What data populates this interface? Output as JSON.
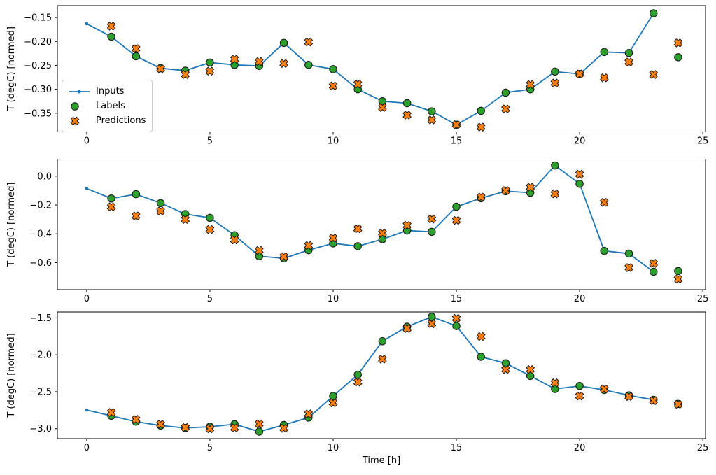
{
  "figure": {
    "background": "#ffffff",
    "xlabel": "Time [h]",
    "ylabel": "T (degC) [normed]",
    "colors": {
      "inputs": "#1f77b4",
      "labels": "#2ca02c",
      "predictions": "#ff7f0e",
      "marker_edge": "#1a1a1a",
      "spine": "#000000",
      "tick_text": "#000000"
    },
    "legend": {
      "position": "upper-left-of-first-subplot",
      "items": [
        {
          "label": "Inputs",
          "marker": "line-dot-icon",
          "color": "#1f77b4"
        },
        {
          "label": "Labels",
          "marker": "circle-icon",
          "color": "#2ca02c"
        },
        {
          "label": "Predictions",
          "marker": "x-cross-icon",
          "color": "#ff7f0e"
        }
      ]
    }
  },
  "chart_data": [
    {
      "type": "line",
      "subplot": 1,
      "ylabel": "T (degC) [normed]",
      "xlim": [
        -1.19,
        25.11
      ],
      "ylim": [
        -0.389,
        -0.125
      ],
      "xticks": [
        0,
        5,
        10,
        15,
        20,
        25
      ],
      "xtick_labels": [
        "0",
        "5",
        "10",
        "15",
        "20",
        "25"
      ],
      "yticks": [
        -0.15,
        -0.2,
        -0.25,
        -0.3,
        -0.35
      ],
      "ytick_labels": [
        "−0.15",
        "−0.20",
        "−0.25",
        "−0.30",
        "−0.35"
      ],
      "grid": false,
      "series": [
        {
          "name": "Inputs",
          "type": "line",
          "marker": "dot",
          "x": [
            0,
            1,
            2,
            3,
            4,
            5,
            6,
            7,
            8,
            9,
            10,
            11,
            12,
            13,
            14,
            15,
            16,
            17,
            18,
            19,
            20,
            21,
            22,
            23
          ],
          "y": [
            -0.163,
            -0.19,
            -0.231,
            -0.256,
            -0.261,
            -0.244,
            -0.249,
            -0.251,
            -0.203,
            -0.249,
            -0.258,
            -0.3,
            -0.325,
            -0.329,
            -0.346,
            -0.374,
            -0.345,
            -0.307,
            -0.3,
            -0.263,
            -0.268,
            -0.222,
            -0.224,
            -0.141
          ]
        },
        {
          "name": "Labels",
          "type": "scatter",
          "marker": "circle",
          "x": [
            1,
            2,
            3,
            4,
            5,
            6,
            7,
            8,
            9,
            10,
            11,
            12,
            13,
            14,
            15,
            16,
            17,
            18,
            19,
            20,
            21,
            22,
            23,
            24
          ],
          "y": [
            -0.19,
            -0.231,
            -0.256,
            -0.261,
            -0.244,
            -0.249,
            -0.251,
            -0.203,
            -0.249,
            -0.258,
            -0.3,
            -0.325,
            -0.329,
            -0.346,
            -0.374,
            -0.345,
            -0.307,
            -0.3,
            -0.263,
            -0.268,
            -0.222,
            -0.224,
            -0.141,
            -0.233
          ]
        },
        {
          "name": "Predictions",
          "type": "scatter",
          "marker": "X",
          "x": [
            1,
            2,
            3,
            4,
            5,
            6,
            7,
            8,
            9,
            10,
            11,
            12,
            13,
            14,
            15,
            16,
            17,
            18,
            19,
            20,
            21,
            22,
            23,
            24
          ],
          "y": [
            -0.168,
            -0.215,
            -0.257,
            -0.269,
            -0.262,
            -0.237,
            -0.242,
            -0.246,
            -0.201,
            -0.293,
            -0.289,
            -0.338,
            -0.354,
            -0.364,
            -0.374,
            -0.379,
            -0.341,
            -0.29,
            -0.287,
            -0.268,
            -0.276,
            -0.243,
            -0.269,
            -0.203
          ]
        }
      ]
    },
    {
      "type": "line",
      "subplot": 2,
      "ylabel": "T (degC) [normed]",
      "xlim": [
        -1.19,
        25.11
      ],
      "ylim": [
        -0.787,
        0.118
      ],
      "xticks": [
        0,
        5,
        10,
        15,
        20,
        25
      ],
      "xtick_labels": [
        "0",
        "5",
        "10",
        "15",
        "20",
        "25"
      ],
      "yticks": [
        0.0,
        -0.2,
        -0.4,
        -0.6
      ],
      "ytick_labels": [
        "0.0",
        "−0.2",
        "−0.4",
        "−0.6"
      ],
      "grid": false,
      "series": [
        {
          "name": "Inputs",
          "type": "line",
          "marker": "dot",
          "x": [
            0,
            1,
            2,
            3,
            4,
            5,
            6,
            7,
            8,
            9,
            10,
            11,
            12,
            13,
            14,
            15,
            16,
            17,
            18,
            19,
            20,
            21,
            22,
            23
          ],
          "y": [
            -0.086,
            -0.155,
            -0.125,
            -0.187,
            -0.263,
            -0.289,
            -0.41,
            -0.555,
            -0.57,
            -0.513,
            -0.466,
            -0.486,
            -0.437,
            -0.377,
            -0.386,
            -0.212,
            -0.153,
            -0.104,
            -0.115,
            0.074,
            -0.053,
            -0.518,
            -0.537,
            -0.663
          ]
        },
        {
          "name": "Labels",
          "type": "scatter",
          "marker": "circle",
          "x": [
            1,
            2,
            3,
            4,
            5,
            6,
            7,
            8,
            9,
            10,
            11,
            12,
            13,
            14,
            15,
            16,
            17,
            18,
            19,
            20,
            21,
            22,
            23,
            24
          ],
          "y": [
            -0.155,
            -0.125,
            -0.187,
            -0.263,
            -0.289,
            -0.41,
            -0.555,
            -0.57,
            -0.513,
            -0.466,
            -0.486,
            -0.437,
            -0.377,
            -0.386,
            -0.212,
            -0.153,
            -0.104,
            -0.115,
            0.074,
            -0.053,
            -0.518,
            -0.537,
            -0.663,
            -0.658
          ]
        },
        {
          "name": "Predictions",
          "type": "scatter",
          "marker": "X",
          "x": [
            1,
            2,
            3,
            4,
            5,
            6,
            7,
            8,
            9,
            10,
            11,
            12,
            13,
            14,
            15,
            16,
            17,
            18,
            19,
            20,
            21,
            22,
            23,
            24
          ],
          "y": [
            -0.213,
            -0.276,
            -0.242,
            -0.3,
            -0.37,
            -0.442,
            -0.515,
            -0.558,
            -0.481,
            -0.429,
            -0.365,
            -0.395,
            -0.341,
            -0.297,
            -0.307,
            -0.145,
            -0.1,
            -0.077,
            -0.123,
            0.013,
            -0.182,
            -0.634,
            -0.605,
            -0.714
          ]
        }
      ]
    },
    {
      "type": "line",
      "subplot": 3,
      "ylabel": "T (degC) [normed]",
      "xlabel": "Time [h]",
      "xlim": [
        -1.19,
        25.11
      ],
      "ylim": [
        -3.135,
        -1.421
      ],
      "xticks": [
        0,
        5,
        10,
        15,
        20,
        25
      ],
      "xtick_labels": [
        "0",
        "5",
        "10",
        "15",
        "20",
        "25"
      ],
      "yticks": [
        -1.5,
        -2.0,
        -2.5,
        -3.0
      ],
      "ytick_labels": [
        "−1.5",
        "−2.0",
        "−2.5",
        "−3.0"
      ],
      "grid": false,
      "series": [
        {
          "name": "Inputs",
          "type": "line",
          "marker": "dot",
          "x": [
            0,
            1,
            2,
            3,
            4,
            5,
            6,
            7,
            8,
            9,
            10,
            11,
            12,
            13,
            14,
            15,
            16,
            17,
            18,
            19,
            20,
            21,
            22,
            23
          ],
          "y": [
            -2.747,
            -2.826,
            -2.905,
            -2.958,
            -2.99,
            -2.974,
            -2.94,
            -3.04,
            -2.95,
            -2.85,
            -2.558,
            -2.27,
            -1.816,
            -1.62,
            -1.486,
            -1.611,
            -2.027,
            -2.115,
            -2.286,
            -2.463,
            -2.422,
            -2.476,
            -2.549,
            -2.61
          ]
        },
        {
          "name": "Labels",
          "type": "scatter",
          "marker": "circle",
          "x": [
            1,
            2,
            3,
            4,
            5,
            6,
            7,
            8,
            9,
            10,
            11,
            12,
            13,
            14,
            15,
            16,
            17,
            18,
            19,
            20,
            21,
            22,
            23,
            24
          ],
          "y": [
            -2.826,
            -2.905,
            -2.958,
            -2.99,
            -2.974,
            -2.94,
            -3.04,
            -2.95,
            -2.85,
            -2.558,
            -2.27,
            -1.816,
            -1.62,
            -1.486,
            -1.611,
            -2.027,
            -2.115,
            -2.286,
            -2.463,
            -2.422,
            -2.476,
            -2.549,
            -2.61,
            -2.665
          ]
        },
        {
          "name": "Predictions",
          "type": "scatter",
          "marker": "X",
          "x": [
            1,
            2,
            3,
            4,
            5,
            6,
            7,
            8,
            9,
            10,
            11,
            12,
            13,
            14,
            15,
            16,
            17,
            18,
            19,
            20,
            21,
            22,
            23,
            24
          ],
          "y": [
            -2.78,
            -2.875,
            -2.94,
            -2.985,
            -3.0,
            -2.99,
            -2.935,
            -2.995,
            -2.8,
            -2.65,
            -2.37,
            -2.059,
            -1.645,
            -1.58,
            -1.507,
            -1.753,
            -2.2,
            -2.2,
            -2.38,
            -2.558,
            -2.462,
            -2.565,
            -2.62,
            -2.67
          ]
        }
      ]
    }
  ]
}
